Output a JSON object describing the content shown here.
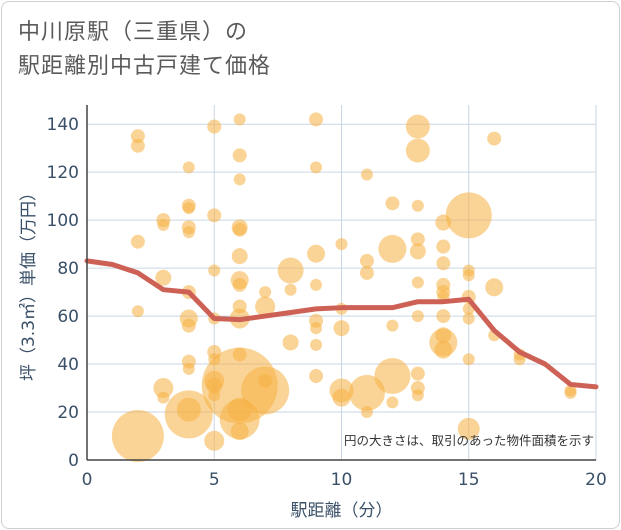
{
  "title_line1": "中川原駅（三重県）の",
  "title_line2": "駅距離別中古戸建て価格",
  "colors": {
    "bubble_fill": "#f5b041",
    "trend_line": "#cd6155",
    "grid": "#c9d6e3",
    "axis_text": "#3a5068"
  },
  "chart_data": {
    "type": "scatter",
    "xlabel": "駅距離（分）",
    "ylabel": "坪（3.3㎡）単価（万円）",
    "xlim": [
      0,
      20
    ],
    "ylim": [
      0,
      148
    ],
    "x_ticks": [
      "0",
      "5",
      "10",
      "15",
      "20"
    ],
    "y_ticks": [
      "0",
      "20",
      "40",
      "60",
      "80",
      "100",
      "120",
      "140"
    ],
    "annotation": "円の大きさは、取引のあった物件面積を示す",
    "points": [
      {
        "x": 2,
        "y": 135,
        "s": 7
      },
      {
        "x": 2,
        "y": 131,
        "s": 7
      },
      {
        "x": 2,
        "y": 91,
        "s": 7
      },
      {
        "x": 2,
        "y": 62,
        "s": 6
      },
      {
        "x": 2,
        "y": 10,
        "s": 26
      },
      {
        "x": 3,
        "y": 100,
        "s": 7
      },
      {
        "x": 3,
        "y": 98,
        "s": 6
      },
      {
        "x": 3,
        "y": 76,
        "s": 8
      },
      {
        "x": 3,
        "y": 30,
        "s": 10
      },
      {
        "x": 3,
        "y": 26,
        "s": 6
      },
      {
        "x": 4,
        "y": 122,
        "s": 6
      },
      {
        "x": 4,
        "y": 106,
        "s": 7
      },
      {
        "x": 4,
        "y": 105,
        "s": 6
      },
      {
        "x": 4,
        "y": 97,
        "s": 7
      },
      {
        "x": 4,
        "y": 95,
        "s": 6
      },
      {
        "x": 4,
        "y": 70,
        "s": 7
      },
      {
        "x": 4,
        "y": 59,
        "s": 9
      },
      {
        "x": 4,
        "y": 56,
        "s": 7
      },
      {
        "x": 4,
        "y": 41,
        "s": 7
      },
      {
        "x": 4,
        "y": 38,
        "s": 6
      },
      {
        "x": 4,
        "y": 21,
        "s": 12
      },
      {
        "x": 4,
        "y": 19,
        "s": 24
      },
      {
        "x": 5,
        "y": 139,
        "s": 7
      },
      {
        "x": 5,
        "y": 102,
        "s": 7
      },
      {
        "x": 5,
        "y": 79,
        "s": 6
      },
      {
        "x": 5,
        "y": 59,
        "s": 6
      },
      {
        "x": 5,
        "y": 45,
        "s": 7
      },
      {
        "x": 5,
        "y": 42,
        "s": 6
      },
      {
        "x": 5,
        "y": 33,
        "s": 10
      },
      {
        "x": 5,
        "y": 31,
        "s": 8
      },
      {
        "x": 5,
        "y": 27,
        "s": 6
      },
      {
        "x": 5,
        "y": 8,
        "s": 10
      },
      {
        "x": 6,
        "y": 142,
        "s": 6
      },
      {
        "x": 6,
        "y": 127,
        "s": 7
      },
      {
        "x": 6,
        "y": 117,
        "s": 6
      },
      {
        "x": 6,
        "y": 97,
        "s": 8
      },
      {
        "x": 6,
        "y": 96,
        "s": 7
      },
      {
        "x": 6,
        "y": 85,
        "s": 8
      },
      {
        "x": 6,
        "y": 75,
        "s": 9
      },
      {
        "x": 6,
        "y": 73,
        "s": 7
      },
      {
        "x": 6,
        "y": 64,
        "s": 7
      },
      {
        "x": 6,
        "y": 59,
        "s": 10
      },
      {
        "x": 6,
        "y": 44,
        "s": 7
      },
      {
        "x": 6,
        "y": 31,
        "s": 38
      },
      {
        "x": 6,
        "y": 21,
        "s": 12
      },
      {
        "x": 6,
        "y": 17,
        "s": 20
      },
      {
        "x": 6,
        "y": 12,
        "s": 9
      },
      {
        "x": 7,
        "y": 70,
        "s": 6
      },
      {
        "x": 7,
        "y": 64,
        "s": 10
      },
      {
        "x": 7,
        "y": 33,
        "s": 7
      },
      {
        "x": 7,
        "y": 29,
        "s": 24
      },
      {
        "x": 8,
        "y": 79,
        "s": 13
      },
      {
        "x": 8,
        "y": 71,
        "s": 6
      },
      {
        "x": 8,
        "y": 49,
        "s": 8
      },
      {
        "x": 9,
        "y": 142,
        "s": 7
      },
      {
        "x": 9,
        "y": 122,
        "s": 6
      },
      {
        "x": 9,
        "y": 86,
        "s": 9
      },
      {
        "x": 9,
        "y": 73,
        "s": 6
      },
      {
        "x": 9,
        "y": 58,
        "s": 7
      },
      {
        "x": 9,
        "y": 55,
        "s": 6
      },
      {
        "x": 9,
        "y": 48,
        "s": 6
      },
      {
        "x": 9,
        "y": 35,
        "s": 7
      },
      {
        "x": 10,
        "y": 90,
        "s": 6
      },
      {
        "x": 10,
        "y": 63,
        "s": 6
      },
      {
        "x": 10,
        "y": 55,
        "s": 8
      },
      {
        "x": 10,
        "y": 29,
        "s": 12
      },
      {
        "x": 10,
        "y": 26,
        "s": 9
      },
      {
        "x": 11,
        "y": 119,
        "s": 6
      },
      {
        "x": 11,
        "y": 83,
        "s": 7
      },
      {
        "x": 11,
        "y": 78,
        "s": 7
      },
      {
        "x": 11,
        "y": 28,
        "s": 18
      },
      {
        "x": 11,
        "y": 20,
        "s": 6
      },
      {
        "x": 12,
        "y": 107,
        "s": 7
      },
      {
        "x": 12,
        "y": 88,
        "s": 14
      },
      {
        "x": 12,
        "y": 56,
        "s": 6
      },
      {
        "x": 12,
        "y": 35,
        "s": 18
      },
      {
        "x": 12,
        "y": 24,
        "s": 6
      },
      {
        "x": 13,
        "y": 139,
        "s": 12
      },
      {
        "x": 13,
        "y": 129,
        "s": 12
      },
      {
        "x": 13,
        "y": 106,
        "s": 6
      },
      {
        "x": 13,
        "y": 92,
        "s": 7
      },
      {
        "x": 13,
        "y": 87,
        "s": 8
      },
      {
        "x": 13,
        "y": 74,
        "s": 6
      },
      {
        "x": 13,
        "y": 60,
        "s": 6
      },
      {
        "x": 13,
        "y": 36,
        "s": 7
      },
      {
        "x": 13,
        "y": 30,
        "s": 7
      },
      {
        "x": 13,
        "y": 27,
        "s": 6
      },
      {
        "x": 14,
        "y": 99,
        "s": 8
      },
      {
        "x": 14,
        "y": 89,
        "s": 7
      },
      {
        "x": 14,
        "y": 82,
        "s": 7
      },
      {
        "x": 14,
        "y": 73,
        "s": 7
      },
      {
        "x": 14,
        "y": 70,
        "s": 7
      },
      {
        "x": 14,
        "y": 68,
        "s": 6
      },
      {
        "x": 14,
        "y": 60,
        "s": 7
      },
      {
        "x": 14,
        "y": 52,
        "s": 8
      },
      {
        "x": 14,
        "y": 49,
        "s": 14
      },
      {
        "x": 14,
        "y": 46,
        "s": 9
      },
      {
        "x": 15,
        "y": 102,
        "s": 23
      },
      {
        "x": 15,
        "y": 79,
        "s": 6
      },
      {
        "x": 15,
        "y": 77,
        "s": 6
      },
      {
        "x": 15,
        "y": 68,
        "s": 7
      },
      {
        "x": 15,
        "y": 63,
        "s": 6
      },
      {
        "x": 15,
        "y": 59,
        "s": 6
      },
      {
        "x": 15,
        "y": 42,
        "s": 6
      },
      {
        "x": 15,
        "y": 13,
        "s": 11
      },
      {
        "x": 16,
        "y": 134,
        "s": 7
      },
      {
        "x": 16,
        "y": 72,
        "s": 9
      },
      {
        "x": 16,
        "y": 52,
        "s": 6
      },
      {
        "x": 17,
        "y": 44,
        "s": 6
      },
      {
        "x": 17,
        "y": 42,
        "s": 6
      },
      {
        "x": 19,
        "y": 29,
        "s": 6
      },
      {
        "x": 19,
        "y": 28,
        "s": 6
      }
    ],
    "trend": {
      "x": [
        0,
        1,
        2,
        3,
        4,
        5,
        6,
        7,
        8,
        9,
        10,
        11,
        12,
        13,
        14,
        15,
        16,
        17,
        18,
        19,
        20
      ],
      "y": [
        83,
        81.5,
        78,
        71,
        70,
        59,
        58.5,
        60,
        61.5,
        63,
        63.5,
        63.5,
        63.5,
        66,
        66,
        67,
        54,
        45,
        40,
        31.5,
        30.5
      ]
    }
  }
}
